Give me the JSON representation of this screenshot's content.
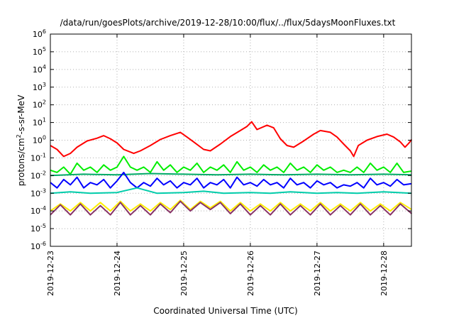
{
  "chart_data": {
    "type": "line",
    "title": "/data/run/goesPlots/archive/2019-12-28/10:00/flux/../flux/5daysMoonFluxes.txt",
    "xlabel": "Coordinated Universal Time (UTC)",
    "ylabel": {
      "base": "protons/cm",
      "sup": "2",
      "rest": "-s-sr-MeV"
    },
    "yscale": "log",
    "ylim": [
      1e-06,
      1000000.0
    ],
    "yticks": [
      {
        "value": 1000000.0,
        "base": "10",
        "exp": "6"
      },
      {
        "value": 100000.0,
        "base": "10",
        "exp": "5"
      },
      {
        "value": 10000.0,
        "base": "10",
        "exp": "4"
      },
      {
        "value": 1000.0,
        "base": "10",
        "exp": "3"
      },
      {
        "value": 100.0,
        "base": "10",
        "exp": "2"
      },
      {
        "value": 10.0,
        "base": "10",
        "exp": "1"
      },
      {
        "value": 1.0,
        "base": "10",
        "exp": "0"
      },
      {
        "value": 0.1,
        "base": "10",
        "exp": "-1"
      },
      {
        "value": 0.01,
        "base": "10",
        "exp": "-2"
      },
      {
        "value": 0.001,
        "base": "10",
        "exp": "-3"
      },
      {
        "value": 0.0001,
        "base": "10",
        "exp": "-4"
      },
      {
        "value": 1e-05,
        "base": "10",
        "exp": "-5"
      },
      {
        "value": 1e-06,
        "base": "10",
        "exp": "-6"
      }
    ],
    "xlim": [
      "2019-12-23",
      "2019-12-28T10:00"
    ],
    "xticks": [
      "2019-12-23",
      "2019-12-24",
      "2019-12-25",
      "2019-12-26",
      "2019-12-27",
      "2019-12-28"
    ],
    "grid": true,
    "series": [
      {
        "color": "#ff0000",
        "values": [
          [
            0,
            0.5
          ],
          [
            0.1,
            0.3
          ],
          [
            0.2,
            0.12
          ],
          [
            0.3,
            0.18
          ],
          [
            0.4,
            0.4
          ],
          [
            0.55,
            0.9
          ],
          [
            0.7,
            1.3
          ],
          [
            0.8,
            1.8
          ],
          [
            0.9,
            1.2
          ],
          [
            1.0,
            0.7
          ],
          [
            1.1,
            0.3
          ],
          [
            1.25,
            0.18
          ],
          [
            1.35,
            0.25
          ],
          [
            1.5,
            0.5
          ],
          [
            1.65,
            1.1
          ],
          [
            1.8,
            1.8
          ],
          [
            1.95,
            2.8
          ],
          [
            2.05,
            1.5
          ],
          [
            2.15,
            0.8
          ],
          [
            2.3,
            0.3
          ],
          [
            2.4,
            0.25
          ],
          [
            2.55,
            0.6
          ],
          [
            2.7,
            1.6
          ],
          [
            2.85,
            3.5
          ],
          [
            2.95,
            6
          ],
          [
            3.02,
            11
          ],
          [
            3.1,
            4
          ],
          [
            3.25,
            7
          ],
          [
            3.35,
            5
          ],
          [
            3.45,
            1.2
          ],
          [
            3.55,
            0.5
          ],
          [
            3.65,
            0.4
          ],
          [
            3.8,
            0.9
          ],
          [
            3.95,
            2.2
          ],
          [
            4.05,
            3.5
          ],
          [
            4.2,
            2.8
          ],
          [
            4.3,
            1.5
          ],
          [
            4.4,
            0.6
          ],
          [
            4.5,
            0.25
          ],
          [
            4.55,
            0.12
          ],
          [
            4.62,
            0.5
          ],
          [
            4.75,
            1.0
          ],
          [
            4.9,
            1.6
          ],
          [
            5.05,
            2.2
          ],
          [
            5.15,
            1.5
          ],
          [
            5.25,
            0.8
          ],
          [
            5.32,
            0.4
          ],
          [
            5.38,
            0.7
          ],
          [
            5.42,
            1.1
          ]
        ]
      },
      {
        "color": "#00ee00",
        "values": [
          [
            0,
            0.02
          ],
          [
            0.1,
            0.015
          ],
          [
            0.2,
            0.03
          ],
          [
            0.3,
            0.012
          ],
          [
            0.4,
            0.05
          ],
          [
            0.5,
            0.02
          ],
          [
            0.6,
            0.03
          ],
          [
            0.7,
            0.015
          ],
          [
            0.8,
            0.04
          ],
          [
            0.9,
            0.02
          ],
          [
            1.0,
            0.03
          ],
          [
            1.1,
            0.12
          ],
          [
            1.2,
            0.03
          ],
          [
            1.3,
            0.02
          ],
          [
            1.4,
            0.03
          ],
          [
            1.5,
            0.015
          ],
          [
            1.6,
            0.06
          ],
          [
            1.7,
            0.02
          ],
          [
            1.8,
            0.04
          ],
          [
            1.9,
            0.015
          ],
          [
            2.0,
            0.03
          ],
          [
            2.1,
            0.02
          ],
          [
            2.2,
            0.05
          ],
          [
            2.3,
            0.015
          ],
          [
            2.4,
            0.03
          ],
          [
            2.5,
            0.02
          ],
          [
            2.6,
            0.04
          ],
          [
            2.7,
            0.015
          ],
          [
            2.8,
            0.06
          ],
          [
            2.9,
            0.02
          ],
          [
            3.0,
            0.03
          ],
          [
            3.1,
            0.015
          ],
          [
            3.2,
            0.04
          ],
          [
            3.3,
            0.02
          ],
          [
            3.4,
            0.03
          ],
          [
            3.5,
            0.015
          ],
          [
            3.6,
            0.05
          ],
          [
            3.7,
            0.02
          ],
          [
            3.8,
            0.03
          ],
          [
            3.9,
            0.015
          ],
          [
            4.0,
            0.04
          ],
          [
            4.1,
            0.02
          ],
          [
            4.2,
            0.03
          ],
          [
            4.3,
            0.015
          ],
          [
            4.4,
            0.02
          ],
          [
            4.5,
            0.015
          ],
          [
            4.6,
            0.03
          ],
          [
            4.7,
            0.015
          ],
          [
            4.8,
            0.05
          ],
          [
            4.9,
            0.02
          ],
          [
            5.0,
            0.03
          ],
          [
            5.1,
            0.015
          ],
          [
            5.2,
            0.05
          ],
          [
            5.3,
            0.015
          ],
          [
            5.42,
            0.018
          ]
        ]
      },
      {
        "color": "#00aa66",
        "values": [
          [
            0,
            0.01
          ],
          [
            0.5,
            0.012
          ],
          [
            1.0,
            0.011
          ],
          [
            1.5,
            0.013
          ],
          [
            2.0,
            0.012
          ],
          [
            2.5,
            0.011
          ],
          [
            3.0,
            0.012
          ],
          [
            3.5,
            0.011
          ],
          [
            4.0,
            0.012
          ],
          [
            4.5,
            0.011
          ],
          [
            5.0,
            0.012
          ],
          [
            5.42,
            0.011
          ]
        ]
      },
      {
        "color": "#0000ff",
        "values": [
          [
            0,
            0.004
          ],
          [
            0.1,
            0.002
          ],
          [
            0.2,
            0.006
          ],
          [
            0.3,
            0.003
          ],
          [
            0.4,
            0.008
          ],
          [
            0.5,
            0.002
          ],
          [
            0.6,
            0.004
          ],
          [
            0.7,
            0.003
          ],
          [
            0.8,
            0.006
          ],
          [
            0.9,
            0.002
          ],
          [
            1.0,
            0.005
          ],
          [
            1.1,
            0.015
          ],
          [
            1.2,
            0.004
          ],
          [
            1.3,
            0.002
          ],
          [
            1.4,
            0.004
          ],
          [
            1.5,
            0.0025
          ],
          [
            1.6,
            0.007
          ],
          [
            1.7,
            0.003
          ],
          [
            1.8,
            0.005
          ],
          [
            1.9,
            0.002
          ],
          [
            2.0,
            0.004
          ],
          [
            2.1,
            0.003
          ],
          [
            2.2,
            0.007
          ],
          [
            2.3,
            0.002
          ],
          [
            2.4,
            0.004
          ],
          [
            2.5,
            0.003
          ],
          [
            2.6,
            0.006
          ],
          [
            2.7,
            0.002
          ],
          [
            2.8,
            0.008
          ],
          [
            2.9,
            0.003
          ],
          [
            3.0,
            0.004
          ],
          [
            3.1,
            0.0025
          ],
          [
            3.2,
            0.006
          ],
          [
            3.3,
            0.003
          ],
          [
            3.4,
            0.004
          ],
          [
            3.5,
            0.002
          ],
          [
            3.6,
            0.007
          ],
          [
            3.7,
            0.003
          ],
          [
            3.8,
            0.004
          ],
          [
            3.9,
            0.002
          ],
          [
            4.0,
            0.005
          ],
          [
            4.1,
            0.003
          ],
          [
            4.2,
            0.004
          ],
          [
            4.3,
            0.002
          ],
          [
            4.4,
            0.003
          ],
          [
            4.5,
            0.0025
          ],
          [
            4.6,
            0.004
          ],
          [
            4.7,
            0.002
          ],
          [
            4.8,
            0.007
          ],
          [
            4.9,
            0.003
          ],
          [
            5.0,
            0.004
          ],
          [
            5.1,
            0.0025
          ],
          [
            5.2,
            0.006
          ],
          [
            5.3,
            0.003
          ],
          [
            5.42,
            0.0035
          ]
        ]
      },
      {
        "color": "#00ccaa",
        "values": [
          [
            0,
            0.001
          ],
          [
            0.3,
            0.0012
          ],
          [
            0.6,
            0.001
          ],
          [
            1.0,
            0.0011
          ],
          [
            1.3,
            0.002
          ],
          [
            1.6,
            0.001
          ],
          [
            2.0,
            0.0011
          ],
          [
            2.3,
            0.0013
          ],
          [
            2.6,
            0.001
          ],
          [
            3.0,
            0.0011
          ],
          [
            3.3,
            0.001
          ],
          [
            3.6,
            0.0012
          ],
          [
            4.0,
            0.001
          ],
          [
            4.3,
            0.0011
          ],
          [
            4.6,
            0.001
          ],
          [
            5.0,
            0.0012
          ],
          [
            5.42,
            0.001
          ]
        ]
      },
      {
        "color": "#ffee00",
        "values": [
          [
            0,
            0.0001
          ],
          [
            0.15,
            0.00025
          ],
          [
            0.3,
            0.0001
          ],
          [
            0.45,
            0.0003
          ],
          [
            0.6,
            0.0001
          ],
          [
            0.75,
            0.0003
          ],
          [
            0.9,
            0.0001
          ],
          [
            1.05,
            0.00035
          ],
          [
            1.2,
            0.0001
          ],
          [
            1.35,
            0.00025
          ],
          [
            1.5,
            0.0001
          ],
          [
            1.65,
            0.0003
          ],
          [
            1.8,
            0.00012
          ],
          [
            1.95,
            0.0004
          ],
          [
            2.1,
            0.00012
          ],
          [
            2.25,
            0.00035
          ],
          [
            2.4,
            0.00015
          ],
          [
            2.55,
            0.00035
          ],
          [
            2.7,
            0.0001
          ],
          [
            2.85,
            0.0003
          ],
          [
            3.0,
            0.0001
          ],
          [
            3.15,
            0.00025
          ],
          [
            3.3,
            0.0001
          ],
          [
            3.45,
            0.0003
          ],
          [
            3.6,
            0.0001
          ],
          [
            3.75,
            0.00025
          ],
          [
            3.9,
            0.0001
          ],
          [
            4.05,
            0.0003
          ],
          [
            4.2,
            0.0001
          ],
          [
            4.35,
            0.00025
          ],
          [
            4.5,
            0.0001
          ],
          [
            4.65,
            0.0003
          ],
          [
            4.8,
            0.0001
          ],
          [
            4.95,
            0.00025
          ],
          [
            5.1,
            0.0001
          ],
          [
            5.25,
            0.0003
          ],
          [
            5.42,
            0.00012
          ]
        ]
      },
      {
        "color": "#883366",
        "values": [
          [
            0,
            6e-05
          ],
          [
            0.15,
            0.00022
          ],
          [
            0.3,
            6e-05
          ],
          [
            0.45,
            0.00025
          ],
          [
            0.6,
            6e-05
          ],
          [
            0.75,
            0.0002
          ],
          [
            0.9,
            6e-05
          ],
          [
            1.05,
            0.0003
          ],
          [
            1.2,
            6e-05
          ],
          [
            1.35,
            0.0002
          ],
          [
            1.5,
            6e-05
          ],
          [
            1.65,
            0.00025
          ],
          [
            1.8,
            8e-05
          ],
          [
            1.95,
            0.00035
          ],
          [
            2.1,
            0.0001
          ],
          [
            2.25,
            0.0003
          ],
          [
            2.4,
            0.00012
          ],
          [
            2.55,
            0.0003
          ],
          [
            2.7,
            7e-05
          ],
          [
            2.85,
            0.00025
          ],
          [
            3.0,
            6e-05
          ],
          [
            3.15,
            0.0002
          ],
          [
            3.3,
            6e-05
          ],
          [
            3.45,
            0.00025
          ],
          [
            3.6,
            6e-05
          ],
          [
            3.75,
            0.0002
          ],
          [
            3.9,
            6e-05
          ],
          [
            4.05,
            0.00025
          ],
          [
            4.2,
            6e-05
          ],
          [
            4.35,
            0.0002
          ],
          [
            4.5,
            6e-05
          ],
          [
            4.65,
            0.00025
          ],
          [
            4.8,
            6e-05
          ],
          [
            4.95,
            0.0002
          ],
          [
            5.1,
            6e-05
          ],
          [
            5.25,
            0.00025
          ],
          [
            5.42,
            7e-05
          ]
        ]
      }
    ]
  }
}
